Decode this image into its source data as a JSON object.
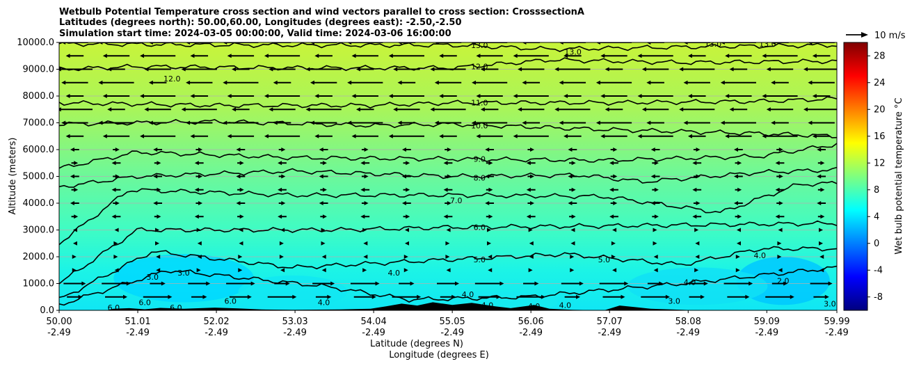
{
  "chart_data": {
    "type": "heatmap",
    "title": [
      "Wetbulb Potential Temperature cross section and wind vectors parallel to cross section: CrosssectionA",
      "Latitudes (degrees north): 50.00,60.00, Longitudes (degrees east): -2.50,-2.50",
      "Simulation start time: 2024-03-05 00:00:00, Valid time: 2024-03-06 16:00:00"
    ],
    "xlabel": "Latitude (degrees N)",
    "xlabel2": "Longitude (degrees E)",
    "ylabel": "Altitude (meters)",
    "xlim": [
      50.0,
      59.99
    ],
    "ylim": [
      0,
      10000
    ],
    "x_ticks": [
      {
        "lat": "50.00",
        "lon": "-2.49",
        "v": 50.0
      },
      {
        "lat": "51.01",
        "lon": "-2.49",
        "v": 51.01
      },
      {
        "lat": "52.02",
        "lon": "-2.49",
        "v": 52.02
      },
      {
        "lat": "53.03",
        "lon": "-2.49",
        "v": 53.03
      },
      {
        "lat": "54.04",
        "lon": "-2.49",
        "v": 54.04
      },
      {
        "lat": "55.05",
        "lon": "-2.49",
        "v": 55.05
      },
      {
        "lat": "56.06",
        "lon": "-2.49",
        "v": 56.06
      },
      {
        "lat": "57.07",
        "lon": "-2.49",
        "v": 57.07
      },
      {
        "lat": "58.08",
        "lon": "-2.49",
        "v": 58.08
      },
      {
        "lat": "59.09",
        "lon": "-2.49",
        "v": 59.09
      },
      {
        "lat": "59.99",
        "lon": "-2.49",
        "v": 59.99
      }
    ],
    "y_ticks": [
      {
        "label": "0.0",
        "v": 0
      },
      {
        "label": "1000.0",
        "v": 1000
      },
      {
        "label": "2000.0",
        "v": 2000
      },
      {
        "label": "3000.0",
        "v": 3000
      },
      {
        "label": "4000.0",
        "v": 4000
      },
      {
        "label": "5000.0",
        "v": 5000
      },
      {
        "label": "6000.0",
        "v": 6000
      },
      {
        "label": "7000.0",
        "v": 7000
      },
      {
        "label": "8000.0",
        "v": 8000
      },
      {
        "label": "9000.0",
        "v": 9000
      },
      {
        "label": "10000.0",
        "v": 10000
      }
    ],
    "grid": "horizontal",
    "colorbar": {
      "label": "Wet bulb potential temperature °C",
      "range": [
        -10,
        30
      ],
      "ticks": [
        "-8",
        "-4",
        "0",
        "4",
        "8",
        "12",
        "16",
        "20",
        "24",
        "28"
      ],
      "tick_values": [
        -8,
        -4,
        0,
        4,
        8,
        12,
        16,
        20,
        24,
        28
      ],
      "colors": [
        "#00007f",
        "#0000ff",
        "#007fff",
        "#00ffff",
        "#7fff7f",
        "#ffff00",
        "#ff7f00",
        "#ff0000",
        "#7f0000"
      ]
    },
    "quiver_key": "10 m/s",
    "contours": [
      {
        "level": 13.0,
        "label": "13.0",
        "profile": [
          [
            50.0,
            9950
          ],
          [
            52.5,
            9900
          ],
          [
            55.05,
            9900
          ],
          [
            56.3,
            9750
          ],
          [
            58.5,
            9850
          ],
          [
            59.99,
            9900
          ]
        ]
      },
      {
        "level": 12.0,
        "label": "12.0",
        "profile": [
          [
            50.0,
            9000
          ],
          [
            51.0,
            9100
          ],
          [
            53.0,
            9050
          ],
          [
            55.05,
            9050
          ],
          [
            56.3,
            9350
          ],
          [
            58.0,
            9250
          ],
          [
            59.99,
            9300
          ]
        ]
      },
      {
        "level": 11.0,
        "label": "11.0",
        "profile": [
          [
            50.0,
            7750
          ],
          [
            52.0,
            7650
          ],
          [
            54.0,
            7650
          ],
          [
            55.05,
            7750
          ],
          [
            57.0,
            7750
          ],
          [
            59.0,
            7800
          ],
          [
            59.99,
            7900
          ]
        ]
      },
      {
        "level": 10.0,
        "label": "10.0",
        "profile": [
          [
            50.0,
            6950
          ],
          [
            52.0,
            7050
          ],
          [
            54.0,
            6900
          ],
          [
            55.05,
            6950
          ],
          [
            57.0,
            6750
          ],
          [
            59.0,
            6600
          ],
          [
            59.99,
            6500
          ]
        ]
      },
      {
        "level": 9.0,
        "label": "9.0",
        "profile": [
          [
            50.0,
            5300
          ],
          [
            51.0,
            5900
          ],
          [
            53.0,
            5700
          ],
          [
            55.05,
            5650
          ],
          [
            57.0,
            5600
          ],
          [
            59.0,
            5750
          ],
          [
            59.99,
            6200
          ]
        ]
      },
      {
        "level": 8.0,
        "label": "8.0",
        "profile": [
          [
            50.0,
            4600
          ],
          [
            51.0,
            5000
          ],
          [
            53.0,
            5200
          ],
          [
            55.05,
            5000
          ],
          [
            56.7,
            5050
          ],
          [
            57.5,
            4800
          ],
          [
            59.0,
            5150
          ],
          [
            59.99,
            5250
          ]
        ]
      },
      {
        "level": 7.0,
        "label": "7.0",
        "profile": [
          [
            50.0,
            2500
          ],
          [
            50.9,
            4500
          ],
          [
            53.0,
            4300
          ],
          [
            55.05,
            4300
          ],
          [
            57.0,
            4250
          ],
          [
            58.5,
            3650
          ],
          [
            59.5,
            4700
          ],
          [
            59.99,
            4750
          ]
        ]
      },
      {
        "level": 6.0,
        "label": "6.0",
        "profile": [
          [
            50.0,
            1000
          ],
          [
            51.0,
            3000
          ],
          [
            53.5,
            3000
          ],
          [
            55.05,
            3100
          ],
          [
            57.0,
            3150
          ],
          [
            58.5,
            3200
          ],
          [
            59.99,
            3250
          ]
        ]
      },
      {
        "level": 5.0,
        "label": "5.0",
        "profile": [
          [
            50.0,
            400
          ],
          [
            51.2,
            2200
          ],
          [
            53.0,
            1600
          ],
          [
            55.05,
            1900
          ],
          [
            56.5,
            2100
          ],
          [
            58.0,
            1700
          ],
          [
            59.0,
            2300
          ],
          [
            59.99,
            2300
          ]
        ]
      },
      {
        "level": 4.0,
        "label": "4.0",
        "profile": [
          [
            50.0,
            200
          ],
          [
            51.4,
            1500
          ],
          [
            53.4,
            900
          ],
          [
            54.5,
            400
          ],
          [
            56.0,
            500
          ],
          [
            58.0,
            1000
          ],
          [
            59.99,
            1600
          ]
        ]
      }
    ],
    "contour_labels": [
      {
        "text": "13.0",
        "x": 55.4,
        "y": 9900
      },
      {
        "text": "13.0",
        "x": 56.6,
        "y": 9650
      },
      {
        "text": "13.0",
        "x": 58.4,
        "y": 9950
      },
      {
        "text": "13.0",
        "x": 59.1,
        "y": 9950
      },
      {
        "text": "12.0",
        "x": 55.4,
        "y": 9100
      },
      {
        "text": "12.0",
        "x": 51.45,
        "y": 8650
      },
      {
        "text": "11.0",
        "x": 55.4,
        "y": 7750
      },
      {
        "text": "10.0",
        "x": 55.4,
        "y": 6900
      },
      {
        "text": "9.0",
        "x": 55.4,
        "y": 5650
      },
      {
        "text": "8.0",
        "x": 55.4,
        "y": 4950
      },
      {
        "text": "7.0",
        "x": 55.1,
        "y": 4100
      },
      {
        "text": "6.0",
        "x": 55.4,
        "y": 3100
      },
      {
        "text": "5.0",
        "x": 55.4,
        "y": 1900
      },
      {
        "text": "5.0",
        "x": 57.0,
        "y": 1900
      },
      {
        "text": "4.0",
        "x": 59.0,
        "y": 2050
      },
      {
        "text": "4.0",
        "x": 58.1,
        "y": 1050
      },
      {
        "text": "4.0",
        "x": 54.3,
        "y": 1400
      },
      {
        "text": "3.0",
        "x": 51.6,
        "y": 1400
      },
      {
        "text": "3.0",
        "x": 51.2,
        "y": 1250
      },
      {
        "text": "3.0",
        "x": 57.9,
        "y": 350
      },
      {
        "text": "2.0",
        "x": 59.3,
        "y": 1100
      },
      {
        "text": "4.0",
        "x": 53.4,
        "y": 300
      },
      {
        "text": "4.0",
        "x": 55.5,
        "y": 200
      },
      {
        "text": "4.0",
        "x": 56.5,
        "y": 200
      },
      {
        "text": "4.0",
        "x": 56.1,
        "y": 150
      },
      {
        "text": "4.0",
        "x": 55.25,
        "y": 600
      },
      {
        "text": "6.0",
        "x": 50.7,
        "y": 100
      },
      {
        "text": "6.0",
        "x": 51.1,
        "y": 300
      },
      {
        "text": "6.0",
        "x": 51.5,
        "y": 100
      },
      {
        "text": "6.0",
        "x": 52.2,
        "y": 350
      },
      {
        "text": "3.0",
        "x": 59.9,
        "y": 250
      }
    ]
  }
}
